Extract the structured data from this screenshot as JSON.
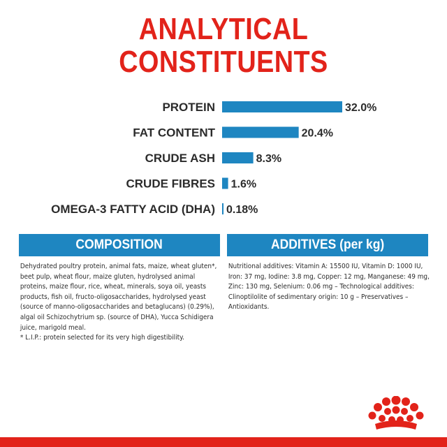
{
  "title": {
    "line1": "ANALYTICAL",
    "line2": "CONSTITUENTS"
  },
  "colors": {
    "accent_red": "#e2231a",
    "bar_blue": "#1e86c1",
    "text": "#2b2b2b"
  },
  "chart_data": {
    "type": "bar",
    "orientation": "horizontal",
    "title": "ANALYTICAL CONSTITUENTS",
    "categories": [
      "PROTEIN",
      "FAT CONTENT",
      "CRUDE ASH",
      "CRUDE FIBRES",
      "OMEGA-3 FATTY ACID (DHA)"
    ],
    "values": [
      32.0,
      20.4,
      8.3,
      1.6,
      0.18
    ],
    "value_labels": [
      "32.0%",
      "20.4%",
      "8.3%",
      "1.6%",
      "0.18%"
    ],
    "unit": "%",
    "bar_color": "#1e86c1",
    "grid": false,
    "legend": "none"
  },
  "composition": {
    "heading": "COMPOSITION",
    "text": "Dehydrated poultry protein, animal fats, maize, wheat gluten*, beet pulp, wheat flour, maize gluten, hydrolysed animal proteins, maize flour, rice, wheat, minerals, soya oil, yeasts products, fish oil, fructo-oligosaccharides, hydrolysed yeast (source of manno-oligosaccharides and betaglucans) (0.29%), algal oil Schizochytrium sp. (source of DHA), Yucca Schidigera juice, marigold meal.",
    "footnote": "* L.I.P.: protein selected for its very high digestibility."
  },
  "additives": {
    "heading": "ADDITIVES (per kg)",
    "text": "Nutritional additives: Vitamin A: 15500 IU, Vitamin D: 1000 IU, Iron: 37 mg, Iodine: 3.8 mg, Copper: 12 mg, Manganese: 49 mg, Zinc: 130 mg, Selenium: 0.06 mg – Technological additives: Clinoptilolite of sedimentary origin: 10 g – Preservatives – Antioxidants."
  },
  "logo": {
    "icon": "crown-icon"
  }
}
